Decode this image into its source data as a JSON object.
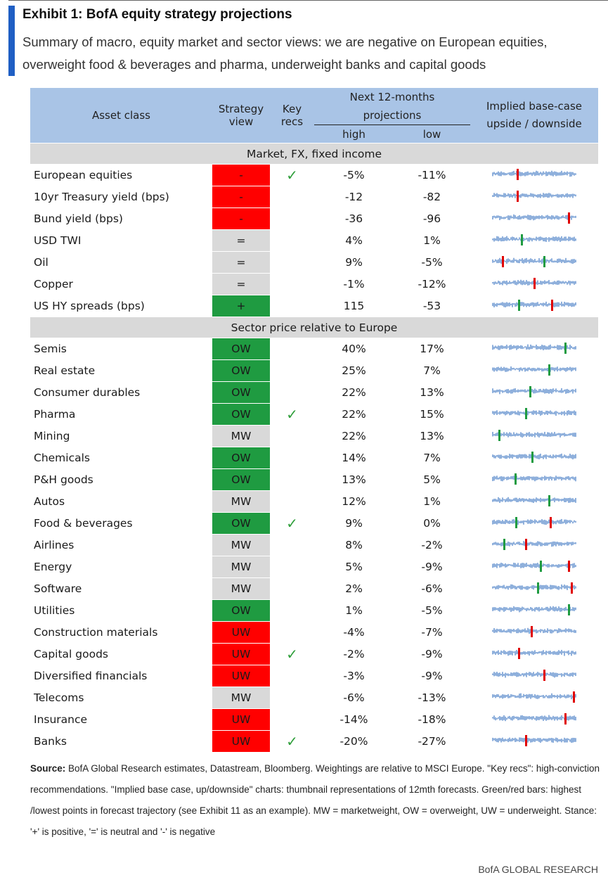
{
  "exhibit": {
    "title": "Exhibit 1: BofA equity strategy projections",
    "subtitle": "Summary of macro, equity market and sector views: we are negative on European equities, overweight food & beverages and pharma, underweight banks and capital goods"
  },
  "colors": {
    "accent": "#1f5fc4",
    "header_bg": "#a9c4e6",
    "section_bg": "#d9d9d9",
    "negative": "#ff0000",
    "overweight": "#1f9b41",
    "marketweight": "#d9d9d9",
    "spark_fill": "#8fb0dc",
    "spark_high": "#1f9b41",
    "spark_low": "#e00000"
  },
  "headers": {
    "asset_class": "Asset class",
    "strategy_view": "Strategy view",
    "key_recs": "Key recs",
    "projections": "Next 12-months projections",
    "high": "high",
    "low": "low",
    "implied": "Implied base-case upside / downside"
  },
  "sections": {
    "macro": "Market, FX, fixed income",
    "sectors": "Sector price relative to Europe"
  },
  "check_icon": "checkmark-icon",
  "check_glyph": "✓",
  "macro_rows": [
    {
      "asset": "European equities",
      "view": "-",
      "style": "red",
      "key": true,
      "high": "-5%",
      "low": "-11%",
      "hi_pos": 0.3,
      "lo_pos": 0.3
    },
    {
      "asset": "10yr Treasury yield (bps)",
      "view": "-",
      "style": "red",
      "key": false,
      "high": "-12",
      "low": "-82",
      "hi_pos": 0.3,
      "lo_pos": 0.3
    },
    {
      "asset": "Bund yield (bps)",
      "view": "-",
      "style": "red",
      "key": false,
      "high": "-36",
      "low": "-96",
      "hi_pos": 0.92,
      "lo_pos": 0.92
    },
    {
      "asset": "USD TWI",
      "view": "=",
      "style": "mw",
      "key": false,
      "high": "4%",
      "low": "1%",
      "hi_pos": 0.35,
      "lo_pos": 0.35
    },
    {
      "asset": "Oil",
      "view": "=",
      "style": "mw",
      "key": false,
      "high": "9%",
      "low": "-5%",
      "hi_pos": 0.62,
      "lo_pos": 0.12
    },
    {
      "asset": "Copper",
      "view": "=",
      "style": "mw",
      "key": false,
      "high": "-1%",
      "low": "-12%",
      "hi_pos": 0.5,
      "lo_pos": 0.5
    },
    {
      "asset": "US HY spreads (bps)",
      "view": "+",
      "style": "ow",
      "key": false,
      "high": "115",
      "low": "-53",
      "hi_pos": 0.32,
      "lo_pos": 0.72
    }
  ],
  "sector_rows": [
    {
      "asset": "Semis",
      "view": "OW",
      "style": "ow",
      "key": false,
      "high": "40%",
      "low": "17%",
      "hi_pos": 0.88,
      "lo_pos": 0.88
    },
    {
      "asset": "Real estate",
      "view": "OW",
      "style": "ow",
      "key": false,
      "high": "25%",
      "low": "7%",
      "hi_pos": 0.68,
      "lo_pos": 0.68
    },
    {
      "asset": "Consumer durables",
      "view": "OW",
      "style": "ow",
      "key": false,
      "high": "22%",
      "low": "13%",
      "hi_pos": 0.45,
      "lo_pos": 0.45
    },
    {
      "asset": "Pharma",
      "view": "OW",
      "style": "ow",
      "key": true,
      "high": "22%",
      "low": "15%",
      "hi_pos": 0.4,
      "lo_pos": 0.4
    },
    {
      "asset": "Mining",
      "view": "MW",
      "style": "mw",
      "key": false,
      "high": "22%",
      "low": "13%",
      "hi_pos": 0.08,
      "lo_pos": 0.08
    },
    {
      "asset": "Chemicals",
      "view": "OW",
      "style": "ow",
      "key": false,
      "high": "14%",
      "low": "7%",
      "hi_pos": 0.48,
      "lo_pos": 0.48
    },
    {
      "asset": "P&H goods",
      "view": "OW",
      "style": "ow",
      "key": false,
      "high": "13%",
      "low": "5%",
      "hi_pos": 0.27,
      "lo_pos": 0.27
    },
    {
      "asset": "Autos",
      "view": "MW",
      "style": "mw",
      "key": false,
      "high": "12%",
      "low": "1%",
      "hi_pos": 0.68,
      "lo_pos": 0.68
    },
    {
      "asset": "Food & beverages",
      "view": "OW",
      "style": "ow",
      "key": true,
      "high": "9%",
      "low": "0%",
      "hi_pos": 0.28,
      "lo_pos": 0.7
    },
    {
      "asset": "Airlines",
      "view": "MW",
      "style": "mw",
      "key": false,
      "high": "8%",
      "low": "-2%",
      "hi_pos": 0.14,
      "lo_pos": 0.4
    },
    {
      "asset": "Energy",
      "view": "MW",
      "style": "mw",
      "key": false,
      "high": "5%",
      "low": "-9%",
      "hi_pos": 0.58,
      "lo_pos": 0.92
    },
    {
      "asset": "Software",
      "view": "MW",
      "style": "mw",
      "key": false,
      "high": "2%",
      "low": "-6%",
      "hi_pos": 0.55,
      "lo_pos": 0.96
    },
    {
      "asset": "Utilities",
      "view": "OW",
      "style": "ow",
      "key": false,
      "high": "1%",
      "low": "-5%",
      "hi_pos": 0.92,
      "lo_pos": 0.92
    },
    {
      "asset": "Construction materials",
      "view": "UW",
      "style": "uw",
      "key": false,
      "high": "-4%",
      "low": "-7%",
      "hi_pos": 0.47,
      "lo_pos": 0.47
    },
    {
      "asset": "Capital goods",
      "view": "UW",
      "style": "uw",
      "key": true,
      "high": "-2%",
      "low": "-9%",
      "hi_pos": 0.32,
      "lo_pos": 0.32
    },
    {
      "asset": "Diversified financials",
      "view": "UW",
      "style": "uw",
      "key": false,
      "high": "-3%",
      "low": "-9%",
      "hi_pos": 0.62,
      "lo_pos": 0.62
    },
    {
      "asset": "Telecoms",
      "view": "MW",
      "style": "mw",
      "key": false,
      "high": "-6%",
      "low": "-13%",
      "hi_pos": 0.98,
      "lo_pos": 0.98
    },
    {
      "asset": "Insurance",
      "view": "UW",
      "style": "uw",
      "key": false,
      "high": "-14%",
      "low": "-18%",
      "hi_pos": 0.88,
      "lo_pos": 0.88
    },
    {
      "asset": "Banks",
      "view": "UW",
      "style": "uw",
      "key": true,
      "high": "-20%",
      "low": "-27%",
      "hi_pos": 0.4,
      "lo_pos": 0.4
    }
  ],
  "source": {
    "label": "Source:",
    "text": "BofA Global Research estimates, Datastream, Bloomberg. Weightings are relative to MSCI Europe. \"Key recs\": high-conviction recommendations. \"Implied base case, up/downside\" charts: thumbnail representations of 12mth forecasts. Green/red bars: highest /lowest points in forecast trajectory (see Exhibit 11 as an example). MW = marketweight, OW = overweight, UW = underweight. Stance: '+' is positive, '=' is neutral and '-' is negative"
  },
  "brand": "BofA GLOBAL RESEARCH"
}
